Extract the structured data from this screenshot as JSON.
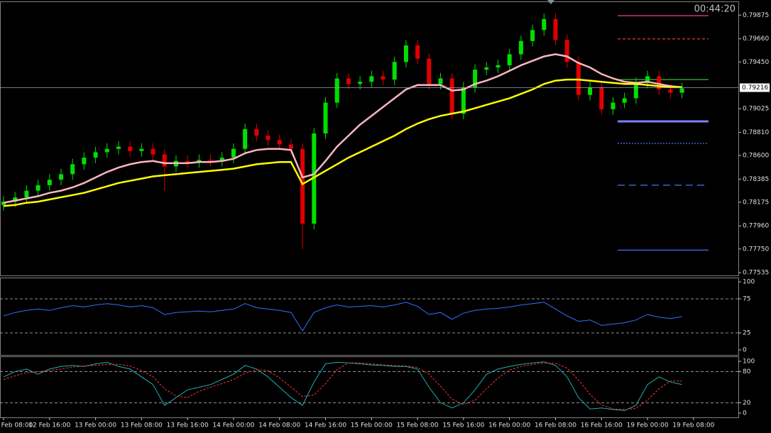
{
  "chart_data": [
    {
      "type": "candlestick",
      "timer": "00:44:20",
      "current_price": 0.79216,
      "up_color": "#00e000",
      "down_color": "#e00000",
      "x": [
        0,
        1,
        2,
        3,
        4,
        5,
        6,
        7,
        8,
        9,
        10,
        11,
        12,
        13,
        14,
        15,
        16,
        17,
        18,
        19,
        20,
        21,
        22,
        23,
        24,
        25,
        26,
        27,
        28,
        29,
        30,
        31,
        32,
        33,
        34,
        35,
        36,
        37,
        38,
        39,
        40,
        41,
        42,
        43,
        44,
        45,
        46,
        47,
        48,
        49,
        50,
        51,
        52,
        53,
        54,
        55,
        56,
        57,
        58,
        59
      ],
      "open": [
        0.7815,
        0.7818,
        0.7822,
        0.7828,
        0.7833,
        0.7838,
        0.7843,
        0.7852,
        0.7858,
        0.7863,
        0.7866,
        0.7868,
        0.7864,
        0.7866,
        0.7861,
        0.785,
        0.7855,
        0.7854,
        0.7856,
        0.7855,
        0.7858,
        0.7866,
        0.7884,
        0.7878,
        0.7874,
        0.787,
        0.7866,
        0.7798,
        0.788,
        0.7908,
        0.793,
        0.7925,
        0.7927,
        0.7932,
        0.7929,
        0.7945,
        0.796,
        0.7948,
        0.7925,
        0.793,
        0.7898,
        0.7922,
        0.7938,
        0.794,
        0.7942,
        0.7952,
        0.7964,
        0.7974,
        0.7984,
        0.7965,
        0.7945,
        0.7915,
        0.7922,
        0.7902,
        0.7908,
        0.7912,
        0.7926,
        0.7932,
        0.792,
        0.7917
      ],
      "high": [
        0.7823,
        0.7827,
        0.7833,
        0.7838,
        0.7843,
        0.7848,
        0.7857,
        0.7863,
        0.7868,
        0.7871,
        0.7873,
        0.7873,
        0.7871,
        0.7871,
        0.7866,
        0.786,
        0.786,
        0.7861,
        0.7861,
        0.7863,
        0.7871,
        0.7889,
        0.7889,
        0.7883,
        0.7879,
        0.7875,
        0.7871,
        0.7885,
        0.7913,
        0.7935,
        0.7935,
        0.7932,
        0.7937,
        0.7937,
        0.795,
        0.7965,
        0.7965,
        0.7953,
        0.7935,
        0.7935,
        0.7927,
        0.7943,
        0.7945,
        0.7947,
        0.7957,
        0.7969,
        0.7979,
        0.7989,
        0.7989,
        0.797,
        0.795,
        0.7927,
        0.7927,
        0.7913,
        0.7917,
        0.7931,
        0.7937,
        0.7937,
        0.7925,
        0.7926
      ],
      "low": [
        0.781,
        0.7813,
        0.7817,
        0.7823,
        0.7828,
        0.7833,
        0.7838,
        0.7847,
        0.7853,
        0.7858,
        0.7861,
        0.7859,
        0.7859,
        0.7856,
        0.7828,
        0.7845,
        0.7849,
        0.7849,
        0.785,
        0.785,
        0.7853,
        0.7861,
        0.7873,
        0.7869,
        0.7865,
        0.7861,
        0.7775,
        0.7793,
        0.7875,
        0.7903,
        0.792,
        0.792,
        0.7922,
        0.7924,
        0.7924,
        0.794,
        0.7943,
        0.792,
        0.792,
        0.7893,
        0.7893,
        0.7917,
        0.7933,
        0.7935,
        0.7937,
        0.7947,
        0.7959,
        0.7969,
        0.796,
        0.794,
        0.791,
        0.791,
        0.7897,
        0.7897,
        0.7903,
        0.7907,
        0.7921,
        0.7915,
        0.7912,
        0.7912
      ],
      "close": [
        0.7818,
        0.7822,
        0.7828,
        0.7833,
        0.7838,
        0.7843,
        0.7852,
        0.7858,
        0.7863,
        0.7866,
        0.7868,
        0.7864,
        0.7866,
        0.7861,
        0.785,
        0.7855,
        0.7854,
        0.7856,
        0.7855,
        0.7858,
        0.7866,
        0.7884,
        0.7878,
        0.7874,
        0.787,
        0.7866,
        0.7798,
        0.788,
        0.7908,
        0.793,
        0.7925,
        0.7927,
        0.7932,
        0.7929,
        0.7945,
        0.796,
        0.7948,
        0.7925,
        0.793,
        0.7898,
        0.7922,
        0.7938,
        0.794,
        0.7942,
        0.7952,
        0.7964,
        0.7974,
        0.7984,
        0.7965,
        0.7945,
        0.7915,
        0.7922,
        0.7902,
        0.7908,
        0.7912,
        0.7926,
        0.7932,
        0.792,
        0.7917,
        0.7921
      ],
      "series": [
        {
          "color": "#ffb6c1",
          "values": [
            0.7817,
            0.7819,
            0.7821,
            0.7823,
            0.7826,
            0.7828,
            0.7831,
            0.7835,
            0.784,
            0.7845,
            0.7849,
            0.7852,
            0.7854,
            0.7855,
            0.7853,
            0.7853,
            0.7853,
            0.7854,
            0.7854,
            0.7855,
            0.7857,
            0.7862,
            0.7865,
            0.7866,
            0.7866,
            0.7865,
            0.784,
            0.7843,
            0.7855,
            0.7868,
            0.7878,
            0.7888,
            0.7896,
            0.7904,
            0.7912,
            0.792,
            0.7924,
            0.7924,
            0.7924,
            0.7919,
            0.792,
            0.7925,
            0.7928,
            0.7932,
            0.7937,
            0.7942,
            0.7946,
            0.795,
            0.7952,
            0.795,
            0.7944,
            0.794,
            0.7934,
            0.793,
            0.7927,
            0.7926,
            0.7927,
            0.7925,
            0.7923,
            0.7922
          ]
        },
        {
          "color": "#ffff00",
          "values": [
            0.7814,
            0.7815,
            0.7817,
            0.7818,
            0.782,
            0.7822,
            0.7824,
            0.7826,
            0.7829,
            0.7832,
            0.7835,
            0.7837,
            0.7839,
            0.7841,
            0.7842,
            0.7843,
            0.7844,
            0.7845,
            0.7846,
            0.7847,
            0.7848,
            0.785,
            0.7852,
            0.7853,
            0.7854,
            0.7854,
            0.7834,
            0.784,
            0.7846,
            0.7852,
            0.7858,
            0.7863,
            0.7868,
            0.7873,
            0.7878,
            0.7884,
            0.7889,
            0.7893,
            0.7896,
            0.7898,
            0.79,
            0.7903,
            0.7906,
            0.7909,
            0.7912,
            0.7916,
            0.792,
            0.7925,
            0.7928,
            0.7929,
            0.7929,
            0.7928,
            0.7927,
            0.7926,
            0.7925,
            0.7925,
            0.7924,
            0.7923,
            0.7922,
            0.7922
          ]
        }
      ],
      "levels": [
        {
          "value": 0.7987,
          "color": "#d0307f",
          "style": "solid"
        },
        {
          "value": 0.7966,
          "color": "#c0302f",
          "style": "dashed"
        },
        {
          "value": 0.7929,
          "color": "#2fa02f",
          "style": "solid"
        },
        {
          "value": 0.7891,
          "color": "#8080ff",
          "style": "thick"
        },
        {
          "value": 0.7871,
          "color": "#4060d0",
          "style": "dotted"
        },
        {
          "value": 0.7833,
          "color": "#4060d0",
          "style": "longdash"
        },
        {
          "value": 0.7774,
          "color": "#4060d0",
          "style": "solid"
        }
      ],
      "xlim": [
        -0.31,
        63.9
      ],
      "ylim": [
        0.7751,
        0.8
      ],
      "yticks": [
        0.79875,
        {
          "value": 0.7966,
          "label": "0.79660"
        },
        {
          "value": 0.7945,
          "label": "0.79450"
        },
        0.79025,
        {
          "value": 0.7881,
          "label": "0.78810"
        },
        {
          "value": 0.786,
          "label": "0.78600"
        },
        0.78385,
        0.78175,
        {
          "value": 0.7796,
          "label": "0.77960"
        },
        {
          "value": 0.7775,
          "label": "0.77750"
        },
        0.77535
      ]
    },
    {
      "type": "line",
      "x": [
        0,
        1,
        2,
        3,
        4,
        5,
        6,
        7,
        8,
        9,
        10,
        11,
        12,
        13,
        14,
        15,
        16,
        17,
        18,
        19,
        20,
        21,
        22,
        23,
        24,
        25,
        26,
        27,
        28,
        29,
        30,
        31,
        32,
        33,
        34,
        35,
        36,
        37,
        38,
        39,
        40,
        41,
        42,
        43,
        44,
        45,
        46,
        47,
        48,
        49,
        50,
        51,
        52,
        53,
        54,
        55,
        56,
        57,
        58,
        59
      ],
      "series": [
        {
          "color": "#3070ff",
          "values": [
            50,
            55,
            58,
            60,
            58,
            62,
            65,
            63,
            66,
            68,
            66,
            63,
            65,
            62,
            52,
            55,
            56,
            57,
            56,
            58,
            60,
            68,
            62,
            60,
            58,
            55,
            28,
            55,
            62,
            66,
            63,
            64,
            65,
            63,
            66,
            70,
            64,
            52,
            55,
            45,
            54,
            58,
            60,
            61,
            63,
            66,
            68,
            70,
            60,
            50,
            42,
            44,
            36,
            38,
            40,
            44,
            52,
            48,
            46,
            49
          ]
        }
      ],
      "levels": [
        {
          "value": 75,
          "color": "#c0c0c0",
          "style": "dashed"
        },
        {
          "value": 25,
          "color": "#c0c0c0",
          "style": "dashed"
        }
      ],
      "xlim": [
        -0.31,
        63.9
      ],
      "ylim": [
        -7.3,
        105.2
      ],
      "yticks": [
        100,
        75,
        25,
        0
      ]
    },
    {
      "type": "line",
      "x": [
        0,
        1,
        2,
        3,
        4,
        5,
        6,
        7,
        8,
        9,
        10,
        11,
        12,
        13,
        14,
        15,
        16,
        17,
        18,
        19,
        20,
        21,
        22,
        23,
        24,
        25,
        26,
        27,
        28,
        29,
        30,
        31,
        32,
        33,
        34,
        35,
        36,
        37,
        38,
        39,
        40,
        41,
        42,
        43,
        44,
        45,
        46,
        47,
        48,
        49,
        50,
        51,
        52,
        53,
        54,
        55,
        56,
        57,
        58,
        59
      ],
      "series": [
        {
          "color": "#20b0b0",
          "values": [
            70,
            80,
            85,
            75,
            85,
            90,
            92,
            90,
            95,
            98,
            90,
            85,
            70,
            55,
            15,
            30,
            45,
            50,
            55,
            65,
            75,
            92,
            85,
            70,
            50,
            30,
            15,
            60,
            95,
            98,
            97,
            95,
            93,
            92,
            90,
            90,
            85,
            50,
            20,
            10,
            20,
            45,
            75,
            85,
            90,
            94,
            97,
            99,
            92,
            70,
            30,
            8,
            10,
            7,
            5,
            15,
            55,
            70,
            60,
            55
          ]
        },
        {
          "color": "#ff3030",
          "style": "dashed",
          "values": [
            65,
            72,
            78,
            80,
            82,
            85,
            89,
            91,
            92,
            94,
            94,
            91,
            82,
            70,
            47,
            33,
            30,
            42,
            50,
            57,
            65,
            77,
            84,
            82,
            68,
            50,
            32,
            35,
            57,
            84,
            97,
            97,
            95,
            93,
            92,
            91,
            88,
            75,
            52,
            27,
            17,
            25,
            47,
            68,
            83,
            90,
            94,
            97,
            96,
            87,
            64,
            36,
            16,
            8,
            7,
            9,
            25,
            47,
            62,
            62
          ]
        }
      ],
      "levels": [
        {
          "value": 80,
          "color": "#c0c0c0",
          "style": "dashed"
        },
        {
          "value": 20,
          "color": "#c0c0c0",
          "style": "dashed"
        }
      ],
      "xlim": [
        -0.31,
        63.9
      ],
      "ylim": [
        -8.2,
        108.2
      ],
      "yticks": [
        100,
        80,
        20,
        0
      ],
      "xticks": [
        {
          "value": 0,
          "label": "Feb 08:00"
        },
        {
          "value": 4,
          "label": "12 Feb 16:00"
        },
        {
          "value": 8,
          "label": "13 Feb 00:00"
        },
        {
          "value": 12,
          "label": "13 Feb 08:00"
        },
        {
          "value": 16,
          "label": "13 Feb 16:00"
        },
        {
          "value": 20,
          "label": "14 Feb 00:00"
        },
        {
          "value": 24,
          "label": "14 Feb 08:00"
        },
        {
          "value": 28,
          "label": "14 Feb 16:00"
        },
        {
          "value": 32,
          "label": "15 Feb 00:00"
        },
        {
          "value": 36,
          "label": "15 Feb 08:00"
        },
        {
          "value": 40,
          "label": "15 Feb 16:00"
        },
        {
          "value": 44,
          "label": "16 Feb 00:00"
        },
        {
          "value": 48,
          "label": "16 Feb 08:00"
        },
        {
          "value": 52,
          "label": "16 Feb 16:00"
        },
        {
          "value": 56,
          "label": "19 Feb 00:00"
        },
        {
          "value": 60,
          "label": "19 Feb 08:00"
        }
      ]
    }
  ]
}
